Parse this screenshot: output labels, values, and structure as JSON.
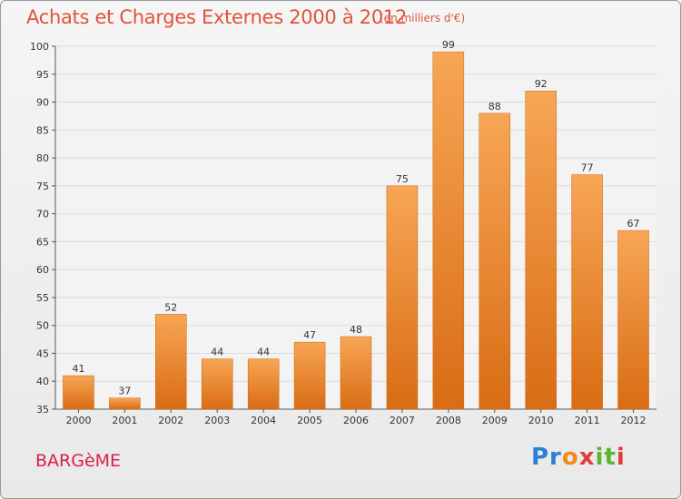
{
  "title": "Achats et Charges Externes 2000 à 2012",
  "subtitle": "(en milliers d'€)",
  "town": "BARGèME",
  "logo": "Proxiti",
  "colors": {
    "bar_top": "#f7a655",
    "bar_bottom": "#d96c14",
    "grid": "#dcdcdc",
    "title": "#e0533a",
    "town": "#d8204a"
  },
  "chart_data": {
    "type": "bar",
    "title": "Achats et Charges Externes 2000 à 2012",
    "subtitle": "(en milliers d'€)",
    "xlabel": "",
    "ylabel": "",
    "categories": [
      "2000",
      "2001",
      "2002",
      "2003",
      "2004",
      "2005",
      "2006",
      "2007",
      "2008",
      "2009",
      "2010",
      "2011",
      "2012"
    ],
    "values": [
      41,
      37,
      52,
      44,
      44,
      47,
      48,
      75,
      99,
      88,
      92,
      77,
      67
    ],
    "ylim": [
      35,
      100
    ],
    "yticks": [
      35,
      40,
      45,
      50,
      55,
      60,
      65,
      70,
      75,
      80,
      85,
      90,
      95,
      100
    ],
    "grid": true,
    "data_labels": true
  }
}
